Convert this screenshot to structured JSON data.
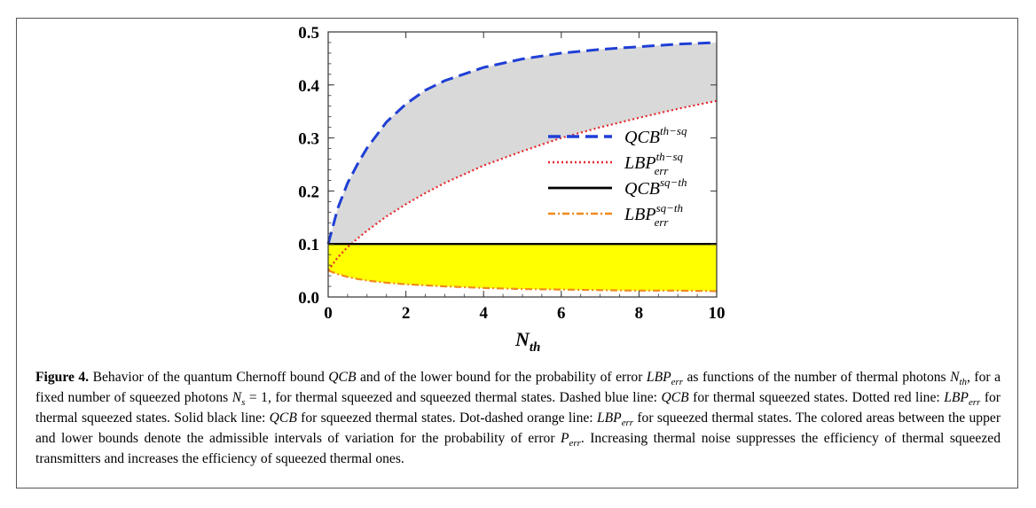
{
  "figure_label": "Figure 4.",
  "chart_data": {
    "type": "line",
    "xlabel": "N",
    "xlabel_sub": "th",
    "xlim": [
      0,
      10
    ],
    "ylim": [
      0,
      0.5
    ],
    "x_ticks": [
      0,
      2,
      4,
      6,
      8,
      10
    ],
    "x_tick_labels": [
      "0",
      "2",
      "4",
      "6",
      "8",
      "10"
    ],
    "y_ticks": [
      0,
      0.1,
      0.2,
      0.3,
      0.4,
      0.5
    ],
    "y_tick_labels": [
      "0.0",
      "0.1",
      "0.2",
      "0.3",
      "0.4",
      "0.5"
    ],
    "legend_position": "right",
    "series": [
      {
        "name": "QCB",
        "sup": "th−sq",
        "sub": "",
        "style": "dashed",
        "color": "#1f3fd6",
        "x": [
          0,
          0.25,
          0.5,
          0.75,
          1,
          1.5,
          2,
          2.5,
          3,
          4,
          5,
          6,
          7,
          8,
          9,
          10
        ],
        "y": [
          0.1,
          0.168,
          0.215,
          0.25,
          0.281,
          0.33,
          0.364,
          0.39,
          0.408,
          0.433,
          0.449,
          0.46,
          0.467,
          0.472,
          0.477,
          0.48
        ]
      },
      {
        "name": "LBP",
        "sup": "th−sq",
        "sub": "err",
        "style": "dotted",
        "color": "#e8262b",
        "x": [
          0,
          0.25,
          0.5,
          0.75,
          1,
          1.5,
          2,
          2.5,
          3,
          4,
          5,
          6,
          7,
          8,
          9,
          10
        ],
        "y": [
          0.05,
          0.075,
          0.094,
          0.11,
          0.125,
          0.152,
          0.175,
          0.196,
          0.215,
          0.248,
          0.275,
          0.3,
          0.32,
          0.338,
          0.355,
          0.37
        ]
      },
      {
        "name": "QCB",
        "sup": "sq−th",
        "sub": "",
        "style": "solid",
        "color": "#000000",
        "x": [
          0,
          10
        ],
        "y": [
          0.1,
          0.1
        ]
      },
      {
        "name": "LBP",
        "sup": "sq−th",
        "sub": "err",
        "style": "dot-dashed",
        "color": "#f08a1c",
        "x": [
          0,
          0.25,
          0.5,
          0.75,
          1,
          1.5,
          2,
          2.5,
          3,
          4,
          5,
          6,
          7,
          8,
          9,
          10
        ],
        "y": [
          0.05,
          0.043,
          0.038,
          0.034,
          0.031,
          0.027,
          0.024,
          0.022,
          0.02,
          0.017,
          0.015,
          0.014,
          0.013,
          0.012,
          0.012,
          0.011
        ]
      }
    ],
    "fill_regions": [
      {
        "between": [
          0,
          1
        ],
        "color": "#d9d9d9"
      },
      {
        "between": [
          2,
          3
        ],
        "color": "#ffff00"
      }
    ]
  },
  "caption": {
    "t1": "Behavior of the quantum Chernoff bound ",
    "qcb": "QCB",
    "t2": " and of the lower bound for the probability of error ",
    "lbp": "LBP",
    "err": "err",
    "t3": " as functions of the number of thermal photons ",
    "n": "N",
    "th": "th",
    "t4": ", for a fixed number of squeezed photons ",
    "ns": "N",
    "s": "s",
    "t5": " = 1, for thermal squeezed and squeezed thermal states. Dashed blue line: ",
    "t6": " for thermal squeezed states. Dotted red line: ",
    "t7": " for thermal squeezed states. Solid black line: ",
    "t8": " for squeezed thermal states. Dot-dashed orange line: ",
    "t9": " for squeezed thermal states. The colored areas between the upper and lower bounds denote the admissible intervals of variation for the probability of error ",
    "p": "P",
    "t10": ". Increasing thermal noise suppresses the efficiency of thermal squeezed transmitters and increases the efficiency of squeezed thermal ones."
  }
}
